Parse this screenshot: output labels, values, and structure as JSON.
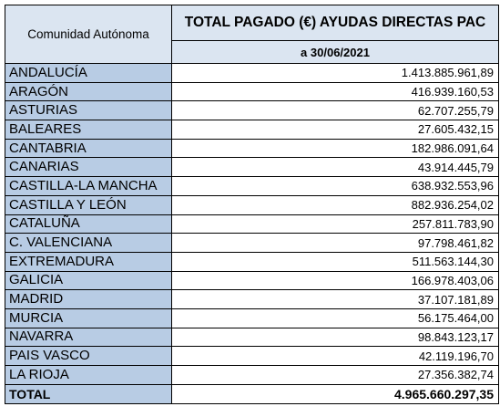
{
  "header": {
    "region_label": "Comunidad Autónoma",
    "title": "TOTAL PAGADO (€) AYUDAS DIRECTAS PAC",
    "date": "a 30/06/2021"
  },
  "rows": [
    {
      "region": "ANDALUCÍA",
      "amount": "1.413.885.961,89"
    },
    {
      "region": "ARAGÓN",
      "amount": "416.939.160,53"
    },
    {
      "region": "ASTURIAS",
      "amount": "62.707.255,79"
    },
    {
      "region": "BALEARES",
      "amount": "27.605.432,15"
    },
    {
      "region": "CANTABRIA",
      "amount": "182.986.091,64"
    },
    {
      "region": "CANARIAS",
      "amount": "43.914.445,79"
    },
    {
      "region": "CASTILLA-LA MANCHA",
      "amount": "638.932.553,96"
    },
    {
      "region": "CASTILLA Y LEÓN",
      "amount": "882.936.254,02"
    },
    {
      "region": "CATALUÑA",
      "amount": "257.811.783,90"
    },
    {
      "region": "C. VALENCIANA",
      "amount": "97.798.461,82"
    },
    {
      "region": "EXTREMADURA",
      "amount": "511.563.144,30"
    },
    {
      "region": "GALICIA",
      "amount": "166.978.403,06"
    },
    {
      "region": "MADRID",
      "amount": "37.107.181,89"
    },
    {
      "region": "MURCIA",
      "amount": "56.175.464,00"
    },
    {
      "region": "NAVARRA",
      "amount": "98.843.123,17"
    },
    {
      "region": "PAIS VASCO",
      "amount": "42.119.196,70"
    },
    {
      "region": "LA RIOJA",
      "amount": "27.356.382,74"
    }
  ],
  "total": {
    "label": "TOTAL",
    "amount": "4.965.660.297,35"
  },
  "colors": {
    "header_bg": "#dbe5f1",
    "region_bg": "#b8cce4",
    "border": "#000000"
  }
}
